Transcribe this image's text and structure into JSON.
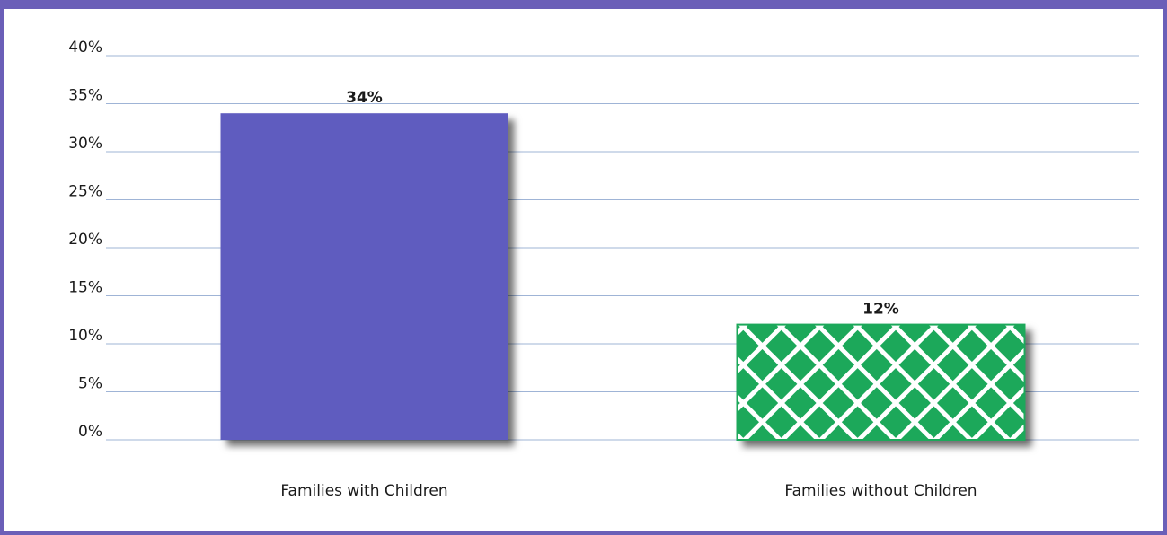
{
  "chart_data": {
    "type": "bar",
    "categories": [
      "Families with Children",
      "Families without Children"
    ],
    "values": [
      34,
      12
    ],
    "data_labels": [
      "34%",
      "12%"
    ],
    "ylim": [
      0,
      40
    ],
    "yticks": [
      0,
      5,
      10,
      15,
      20,
      25,
      30,
      35,
      40
    ],
    "ytick_labels": [
      "0%",
      "5%",
      "10%",
      "15%",
      "20%",
      "25%",
      "30%",
      "35%",
      "40%"
    ],
    "grid": true,
    "colors": {
      "bar1": "#5f5bbf",
      "bar2_fill": "#1aa85a",
      "bar2_pattern": "#ffffff",
      "grid": "#9fb4d6",
      "frame": "#6b5fb8"
    }
  }
}
